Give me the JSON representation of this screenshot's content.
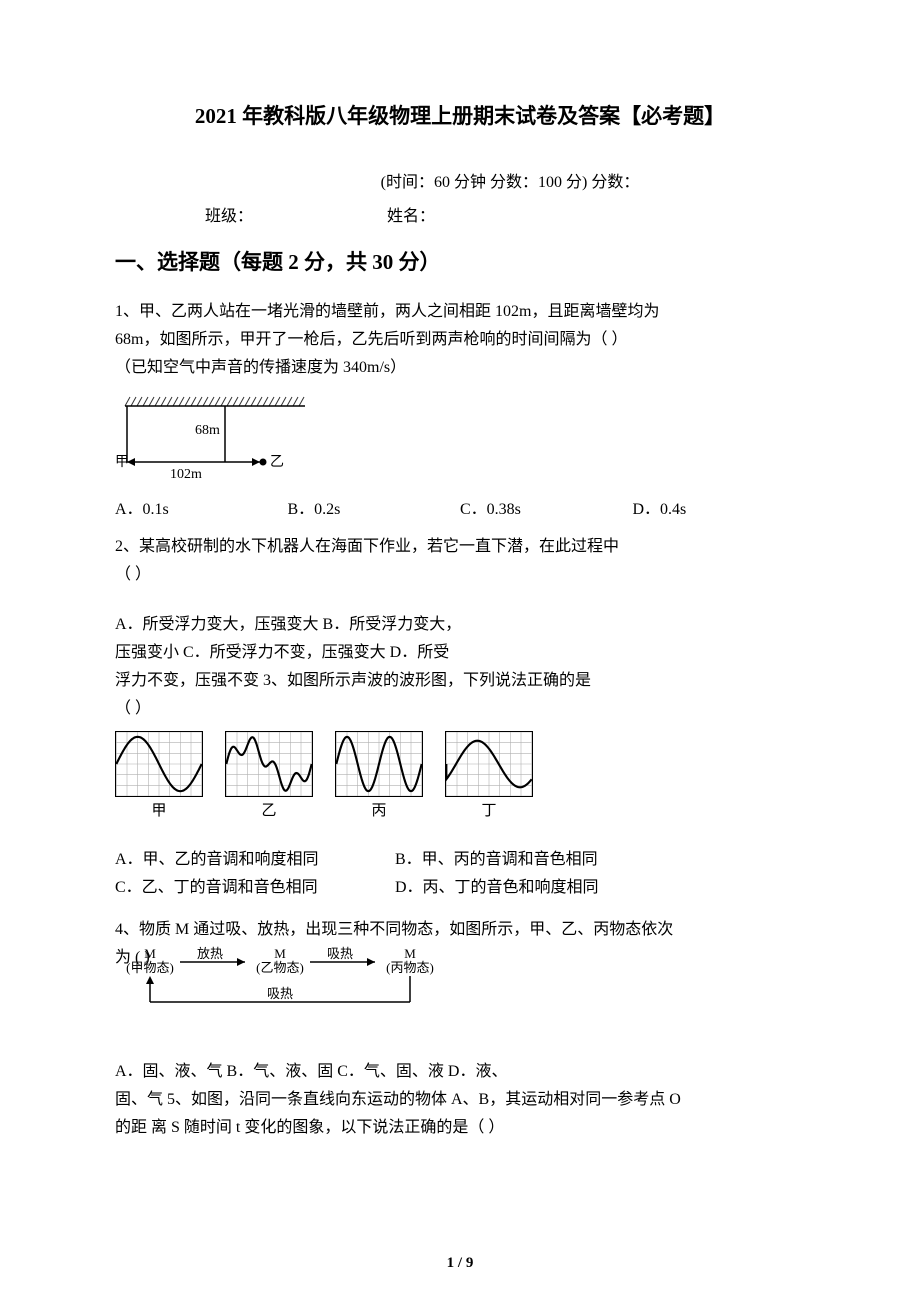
{
  "title": "2021 年教科版八年级物理上册期末试卷及答案【必考题】",
  "exam_info": "(时间：60 分钟    分数：100 分)    分数：",
  "student": {
    "class_label": "班级：",
    "name_label": "姓名："
  },
  "section1": "一、选择题（每题 2 分，共 30 分）",
  "q1": {
    "text1": "1、甲、乙两人站在一堵光滑的墙壁前，两人之间相距 102m，且距离墙壁均为",
    "text2": "68m，如图所示，甲开了一枪后，乙先后听到两声枪响的时间间隔为（        ）",
    "text3": "（已知空气中声音的传播速度为 340m/s）",
    "diagram": {
      "height_label": "68m",
      "width_label": "102m",
      "left_label": "甲",
      "right_label": "乙",
      "hatch_color": "#333333",
      "line_color": "#000000"
    },
    "opts": {
      "a": "A．0.1s",
      "b": "B．0.2s",
      "c": "C．0.38s",
      "d": "D．0.4s"
    }
  },
  "q2": {
    "text1": "2、某高校研制的水下机器人在海面下作业，若它一直下潜，在此过程中",
    "text2": "（        ）",
    "line1": "A．所受浮力变大，压强变大                      B．所受浮力变大，",
    "line2": "压强变小 C．所受浮力不变，压强变大                        D．所受",
    "line3": "浮力不变，压强不变 3、如图所示声波的波形图，下列说法正确的是",
    "line4": "（        ）"
  },
  "q3": {
    "waves": [
      {
        "label": "甲",
        "grid_color": "#b0b0b0",
        "stroke": "#000000",
        "type": "sine_simple"
      },
      {
        "label": "乙",
        "grid_color": "#b0b0b0",
        "stroke": "#000000",
        "type": "complex"
      },
      {
        "label": "丙",
        "grid_color": "#b0b0b0",
        "stroke": "#000000",
        "type": "sine_double"
      },
      {
        "label": "丁",
        "grid_color": "#b0b0b0",
        "stroke": "#000000",
        "type": "sine_low"
      }
    ],
    "opts": {
      "a": "A．甲、乙的音调和响度相同",
      "b": "B．甲、丙的音调和音色相同",
      "c": "C．乙、丁的音调和音色相同",
      "d": "D．丙、丁的音色和响度相同"
    }
  },
  "q4": {
    "text1": "4、物质 M 通过吸、放热，出现三种不同物态，如图所示，甲、乙、丙物态依次",
    "text2": "为 (          )",
    "diagram": {
      "node1": "M\n(甲物态)",
      "node2": "M\n(乙物态)",
      "node3": "M\n(丙物态)",
      "edge12": "放热",
      "edge23": "吸热",
      "edge31": "吸热",
      "stroke": "#000000",
      "fontsize": 13
    },
    "opts_line": "A．固、液、气       B．气、液、固       C．气、固、液       D．液、",
    "opts_line2": "固、气 5、如图，沿同一条直线向东运动的物体 A、B，其运动相对同一参考点 O",
    "opts_line3": "的距 离 S 随时间 t 变化的图象，以下说法正确的是（        ）"
  },
  "page_num": "1 / 9",
  "colors": {
    "text": "#000000",
    "bg": "#ffffff"
  }
}
